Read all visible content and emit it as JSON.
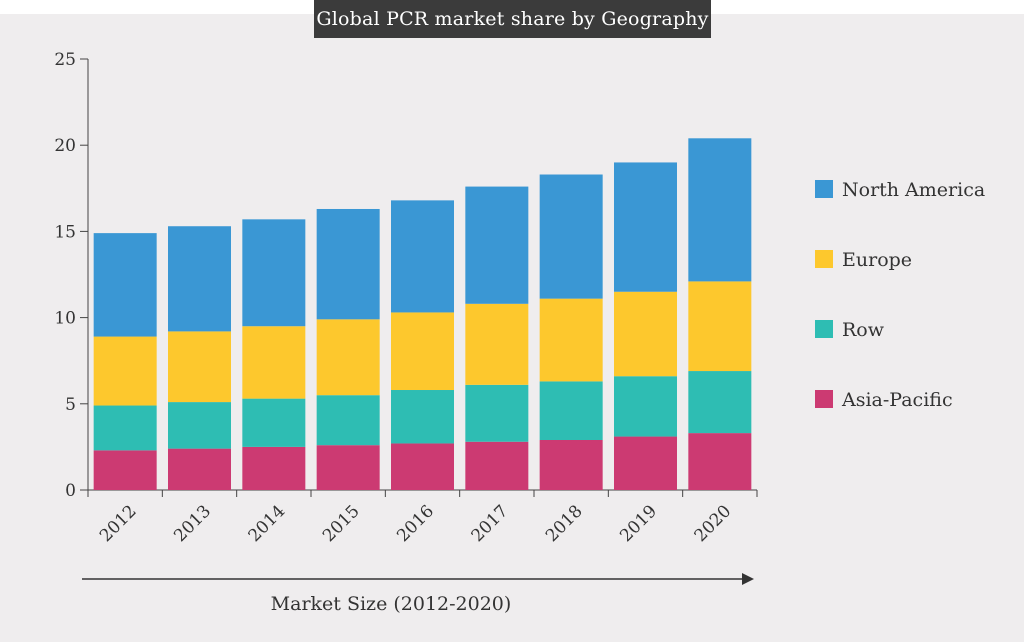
{
  "chart_data": {
    "type": "bar",
    "stacked": true,
    "title": "Global PCR market share by Geography",
    "xlabel": "Market Size (2012-2020)",
    "ylabel": "",
    "ylim": [
      0,
      25
    ],
    "yticks": [
      0,
      5,
      10,
      15,
      20,
      25
    ],
    "grid": false,
    "legend_position": "right",
    "categories": [
      "2012",
      "2013",
      "2014",
      "2015",
      "2016",
      "2017",
      "2018",
      "2019",
      "2020"
    ],
    "series": [
      {
        "name": "Asia-Pacific",
        "color": "#cc3a72",
        "values": [
          2.3,
          2.4,
          2.5,
          2.6,
          2.7,
          2.8,
          2.9,
          3.1,
          3.3
        ]
      },
      {
        "name": "Row",
        "color": "#2ebdb3",
        "values": [
          2.6,
          2.7,
          2.8,
          2.9,
          3.1,
          3.3,
          3.4,
          3.5,
          3.6
        ]
      },
      {
        "name": "Europe",
        "color": "#fdc82d",
        "values": [
          4.0,
          4.1,
          4.2,
          4.4,
          4.5,
          4.7,
          4.8,
          4.9,
          5.2
        ]
      },
      {
        "name": "North America",
        "color": "#3a97d4",
        "values": [
          6.0,
          6.1,
          6.2,
          6.4,
          6.5,
          6.8,
          7.2,
          7.5,
          8.3
        ]
      }
    ],
    "legend_order": [
      "North America",
      "Europe",
      "Row",
      "Asia-Pacific"
    ]
  }
}
